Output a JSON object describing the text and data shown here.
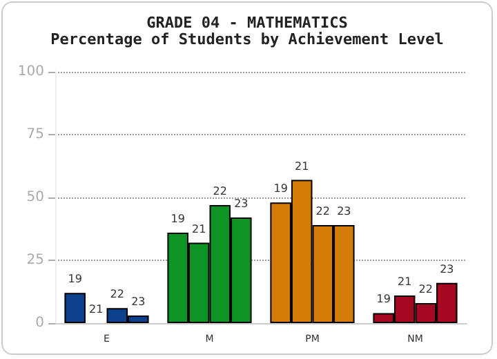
{
  "chart_data": {
    "type": "bar",
    "title": "GRADE 04 - MATHEMATICS",
    "subtitle": "Percentage of Students by Achievement Level",
    "categories": [
      "E",
      "M",
      "PM",
      "NM"
    ],
    "series": [
      {
        "name": "19",
        "colors": [
          "#0c3f8c",
          "#0e9424",
          "#d57b07",
          "#a50820"
        ],
        "values": [
          12,
          36,
          48,
          4
        ]
      },
      {
        "name": "21",
        "colors": [
          "#0c3f8c",
          "#0e9424",
          "#d57b07",
          "#a50820"
        ],
        "values": [
          0,
          32,
          57,
          11
        ]
      },
      {
        "name": "22",
        "colors": [
          "#0c3f8c",
          "#0e9424",
          "#d57b07",
          "#a50820"
        ],
        "values": [
          6,
          47,
          39,
          8
        ]
      },
      {
        "name": "23",
        "colors": [
          "#0c3f8c",
          "#0e9424",
          "#d57b07",
          "#a50820"
        ],
        "values": [
          3,
          42,
          39,
          16
        ]
      }
    ],
    "ylim": [
      0,
      100
    ],
    "yticks": [
      0,
      25,
      50,
      75,
      100
    ],
    "grid": "y",
    "legend": false
  }
}
